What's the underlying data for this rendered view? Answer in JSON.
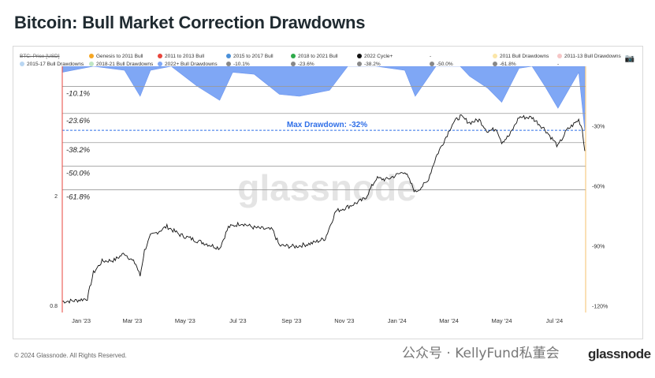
{
  "page": {
    "title": "Bitcoin: Bull Market Correction Drawdowns",
    "copyright": "© 2024 Glassnode. All Rights Reserved.",
    "watermark_text": "公众号 · KellyFund私董会",
    "brand": "glassnode",
    "plot_watermark": "glassnode",
    "camera_icon": "camera-icon"
  },
  "legend": {
    "row1": [
      {
        "label": "BTC: Price [USD]",
        "color": "#888888",
        "style": "strike"
      },
      {
        "label": "Genesis to 2011 Bull",
        "color": "#f5a623"
      },
      {
        "label": "2011 to 2013 Bull",
        "color": "#e8453c"
      },
      {
        "label": "2015 to 2017 Bull",
        "color": "#4a90d9"
      },
      {
        "label": "2018 to 2021 Bull",
        "color": "#2eaa4a"
      },
      {
        "label": "2022 Cycle+",
        "color": "#111111"
      },
      {
        "label": "-",
        "color": ""
      },
      {
        "label": "2011 Bull Drawdowns",
        "color": "#fbe6a8"
      },
      {
        "label": "2011-13 Bull Drawdowns",
        "color": "#f6c6c6"
      }
    ],
    "row2": [
      {
        "label": "2015-17 Bull Drawdowns",
        "color": "#b9d6f2"
      },
      {
        "label": "2018-21 Bull Drawdowns",
        "color": "#bfe6c4"
      },
      {
        "label": "2022+ Bull Drawdowns",
        "color": "#7fa7f5"
      },
      {
        "label": "-10.1%",
        "color": "#888888"
      },
      {
        "label": "-23.6%",
        "color": "#888888"
      },
      {
        "label": "-38.2%",
        "color": "#888888"
      },
      {
        "label": "-50.0%",
        "color": "#888888"
      },
      {
        "label": "-61.8%",
        "color": "#888888"
      },
      {
        "label": "-",
        "color": ""
      }
    ]
  },
  "chart_data": {
    "type": "line",
    "title": "Bitcoin: Bull Market Correction Drawdowns",
    "x_ticks": [
      "Jan '23",
      "Mar '23",
      "May '23",
      "Jul '23",
      "Sep '23",
      "Nov '23",
      "Jan '24",
      "Mar '24",
      "May '24",
      "Jul '24"
    ],
    "left_axis": {
      "scale": "log",
      "ticks": [
        "2",
        "0.8"
      ]
    },
    "right_axis": {
      "ticks": [
        "-30%",
        "-60%",
        "-90%",
        "-120%"
      ]
    },
    "fib_levels": [
      {
        "label": "-10.1%",
        "value": -10.1
      },
      {
        "label": "-23.6%",
        "value": -23.6
      },
      {
        "label": "-38.2%",
        "value": -38.2
      },
      {
        "label": "-50.0%",
        "value": -50.0
      },
      {
        "label": "-61.8%",
        "value": -61.8
      }
    ],
    "max_drawdown": {
      "label": "Max Drawdown: -32%",
      "value": -32
    },
    "colors": {
      "price": "#111111",
      "drawdown_fill": "#7fa7f5",
      "max_dd_line": "#2f6fe8",
      "left_edge": "#e8453c",
      "right_edge": "#f5c26b"
    },
    "series": [
      {
        "name": "2022 Cycle+",
        "x": [
          "2022-12-10",
          "2022-12-25",
          "2023-01-08",
          "2023-01-15",
          "2023-01-25",
          "2023-02-08",
          "2023-02-20",
          "2023-03-05",
          "2023-03-10",
          "2023-03-15",
          "2023-03-22",
          "2023-04-10",
          "2023-04-25",
          "2023-05-15",
          "2023-06-10",
          "2023-06-20",
          "2023-07-05",
          "2023-07-20",
          "2023-08-10",
          "2023-08-18",
          "2023-09-05",
          "2023-09-25",
          "2023-10-10",
          "2023-10-22",
          "2023-11-05",
          "2023-11-25",
          "2023-12-08",
          "2023-12-20",
          "2024-01-10",
          "2024-01-22",
          "2024-02-05",
          "2024-02-15",
          "2024-02-28",
          "2024-03-05",
          "2024-03-14",
          "2024-03-25",
          "2024-04-05",
          "2024-04-15",
          "2024-04-25",
          "2024-05-01",
          "2024-05-10",
          "2024-05-21",
          "2024-06-05",
          "2024-06-20",
          "2024-07-05",
          "2024-07-15",
          "2024-07-29",
          "2024-08-02",
          "2024-08-05"
        ],
        "values": [
          16800,
          16900,
          17200,
          21000,
          23000,
          23200,
          24500,
          22500,
          20500,
          25000,
          28000,
          30200,
          28300,
          27000,
          25500,
          30000,
          31000,
          29900,
          29400,
          26000,
          25800,
          26500,
          27500,
          34000,
          35200,
          37500,
          44000,
          43600,
          46500,
          39500,
          42800,
          52000,
          62000,
          67500,
          71400,
          68000,
          69500,
          63500,
          65000,
          58500,
          61500,
          71000,
          70800,
          64500,
          56500,
          64000,
          69500,
          65000,
          54500
        ]
      },
      {
        "name": "2022+ Bull Drawdowns",
        "x": [
          "2022-12-10",
          "2023-01-15",
          "2023-02-20",
          "2023-03-10",
          "2023-03-22",
          "2023-04-15",
          "2023-05-15",
          "2023-06-10",
          "2023-06-25",
          "2023-07-20",
          "2023-08-18",
          "2023-09-10",
          "2023-10-15",
          "2023-11-05",
          "2023-12-08",
          "2024-01-10",
          "2024-01-22",
          "2024-02-15",
          "2024-03-14",
          "2024-03-25",
          "2024-04-15",
          "2024-05-01",
          "2024-05-21",
          "2024-06-05",
          "2024-06-20",
          "2024-07-05",
          "2024-07-29",
          "2024-08-05"
        ],
        "values": [
          -3,
          0,
          -2,
          -15,
          -2,
          0,
          -10,
          -17,
          -3,
          -4,
          -14,
          -15,
          -12,
          0,
          0,
          -2,
          -15,
          0,
          0,
          -5,
          -11,
          -18,
          -1,
          0,
          -10,
          -21,
          -3,
          -32
        ]
      }
    ]
  }
}
